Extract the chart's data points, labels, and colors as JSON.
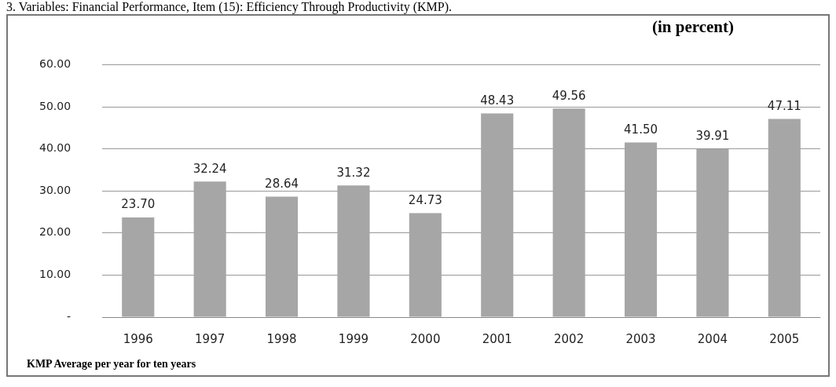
{
  "chart_data": {
    "type": "bar",
    "title": "3. Variables: Financial Performance, Item (15): Efficiency Through Productivity (KMP).",
    "subtitle": "(in percent)",
    "categories": [
      "1996",
      "1997",
      "1998",
      "1999",
      "2000",
      "2001",
      "2002",
      "2003",
      "2004",
      "2005"
    ],
    "values": [
      23.7,
      32.24,
      28.64,
      31.32,
      24.73,
      48.43,
      49.56,
      41.5,
      39.91,
      47.11
    ],
    "value_labels": [
      "23.70",
      "32.24",
      "28.64",
      "31.32",
      "24.73",
      "48.43",
      "49.56",
      "41.50",
      "39.91",
      "47.11"
    ],
    "color": "#a6a6a6",
    "ylim": [
      0,
      60
    ],
    "yticks": [
      {
        "value": 0,
        "label": "-"
      },
      {
        "value": 10,
        "label": "10.00"
      },
      {
        "value": 20,
        "label": "20.00"
      },
      {
        "value": 30,
        "label": "30.00"
      },
      {
        "value": 40,
        "label": "40.00"
      },
      {
        "value": 50,
        "label": "50.00"
      },
      {
        "value": 60,
        "label": "60.00"
      }
    ],
    "grid": "y",
    "legend": false,
    "annotations": [
      "KMP Average per year for ten years"
    ]
  }
}
